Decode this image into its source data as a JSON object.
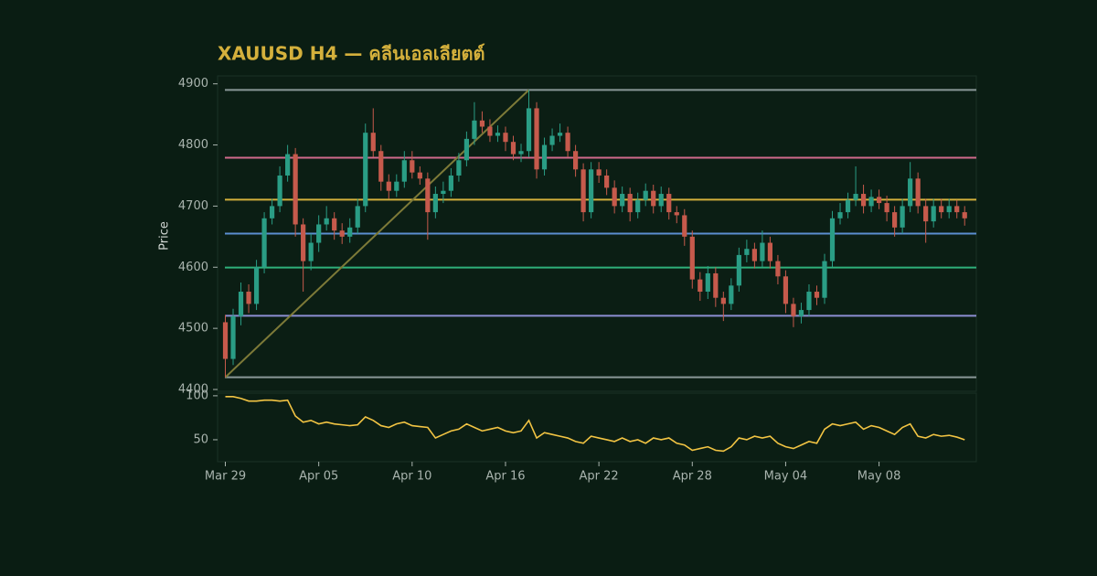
{
  "chart_data": [
    {
      "type": "candlestick",
      "title": "XAUUSD H4 — คลีนเอลเลียตต์",
      "y_label": "Price",
      "xlim": [
        -1,
        96.5
      ],
      "ylim": [
        4397,
        4913
      ],
      "yticks": [
        4400,
        4500,
        4600,
        4700,
        4800,
        4900
      ],
      "up_color": "#2a9d85",
      "down_color": "#c65a4c",
      "open": [
        4510,
        4450,
        4520,
        4560,
        4540,
        4600,
        4680,
        4700,
        4750,
        4785,
        4670,
        4610,
        4640,
        4670,
        4680,
        4660,
        4650,
        4665,
        4700,
        4820,
        4790,
        4740,
        4725,
        4740,
        4775,
        4755,
        4745,
        4690,
        4720,
        4725,
        4750,
        4775,
        4810,
        4840,
        4830,
        4815,
        4820,
        4805,
        4785,
        4790,
        4860,
        4760,
        4800,
        4815,
        4820,
        4790,
        4760,
        4690,
        4760,
        4750,
        4730,
        4700,
        4720,
        4690,
        4710,
        4725,
        4700,
        4720,
        4690,
        4685,
        4650,
        4580,
        4560,
        4590,
        4550,
        4540,
        4570,
        4620,
        4630,
        4610,
        4640,
        4610,
        4585,
        4540,
        4520,
        4530,
        4560,
        4550,
        4610,
        4680,
        4690,
        4710,
        4720,
        4700,
        4715,
        4705,
        4690,
        4665,
        4700,
        4745,
        4700,
        4675,
        4700,
        4690,
        4700,
        4690
      ],
      "high": [
        4522,
        4532,
        4575,
        4572,
        4612,
        4690,
        4712,
        4765,
        4800,
        4795,
        4680,
        4655,
        4685,
        4700,
        4690,
        4672,
        4680,
        4712,
        4835,
        4860,
        4800,
        4752,
        4752,
        4790,
        4790,
        4765,
        4755,
        4732,
        4740,
        4762,
        4787,
        4822,
        4870,
        4855,
        4842,
        4832,
        4830,
        4815,
        4802,
        4890,
        4870,
        4812,
        4827,
        4835,
        4830,
        4800,
        4770,
        4772,
        4772,
        4760,
        4742,
        4732,
        4730,
        4722,
        4737,
        4735,
        4732,
        4730,
        4700,
        4695,
        4660,
        4592,
        4602,
        4600,
        4560,
        4582,
        4632,
        4645,
        4640,
        4660,
        4650,
        4620,
        4595,
        4550,
        4542,
        4572,
        4570,
        4622,
        4692,
        4705,
        4722,
        4765,
        4735,
        4727,
        4727,
        4717,
        4700,
        4712,
        4772,
        4755,
        4712,
        4712,
        4712,
        4712,
        4710,
        4700
      ],
      "low": [
        4420,
        4440,
        4505,
        4525,
        4530,
        4590,
        4670,
        4690,
        4740,
        4650,
        4560,
        4595,
        4625,
        4660,
        4645,
        4638,
        4640,
        4655,
        4690,
        4780,
        4725,
        4712,
        4715,
        4730,
        4745,
        4735,
        4645,
        4680,
        4705,
        4715,
        4740,
        4765,
        4800,
        4820,
        4805,
        4805,
        4790,
        4775,
        4772,
        4780,
        4745,
        4750,
        4790,
        4805,
        4780,
        4748,
        4675,
        4680,
        4738,
        4718,
        4688,
        4690,
        4675,
        4680,
        4700,
        4688,
        4690,
        4678,
        4672,
        4635,
        4565,
        4545,
        4548,
        4535,
        4512,
        4530,
        4560,
        4608,
        4598,
        4600,
        4598,
        4572,
        4525,
        4502,
        4508,
        4520,
        4538,
        4540,
        4600,
        4670,
        4680,
        4700,
        4688,
        4690,
        4695,
        4675,
        4650,
        4655,
        4690,
        4688,
        4640,
        4665,
        4680,
        4680,
        4680,
        4668
      ],
      "close": [
        4450,
        4520,
        4560,
        4540,
        4600,
        4680,
        4700,
        4750,
        4785,
        4670,
        4610,
        4640,
        4670,
        4680,
        4660,
        4650,
        4665,
        4700,
        4820,
        4790,
        4740,
        4725,
        4740,
        4775,
        4755,
        4745,
        4690,
        4720,
        4725,
        4750,
        4775,
        4810,
        4840,
        4830,
        4815,
        4820,
        4805,
        4785,
        4790,
        4860,
        4760,
        4800,
        4815,
        4820,
        4790,
        4760,
        4690,
        4760,
        4750,
        4730,
        4700,
        4720,
        4690,
        4710,
        4725,
        4700,
        4720,
        4690,
        4685,
        4650,
        4580,
        4560,
        4590,
        4550,
        4540,
        4570,
        4620,
        4630,
        4610,
        4640,
        4610,
        4585,
        4540,
        4520,
        4530,
        4560,
        4550,
        4610,
        4680,
        4690,
        4710,
        4720,
        4700,
        4715,
        4705,
        4690,
        4665,
        4700,
        4745,
        4700,
        4675,
        4700,
        4690,
        4700,
        4690,
        4680
      ],
      "levels": [
        {
          "value": 4890,
          "color": "#8a9898"
        },
        {
          "value": 4779.1,
          "color": "#d06a8c"
        },
        {
          "value": 4710.5,
          "color": "#d4b03c"
        },
        {
          "value": 4655,
          "color": "#5b8fd0"
        },
        {
          "value": 4599.5,
          "color": "#2fb07a"
        },
        {
          "value": 4520.6,
          "color": "#8c8ed2"
        },
        {
          "value": 4420,
          "color": "#8a9898"
        }
      ],
      "trendline": {
        "x": [
          0,
          39
        ],
        "y": [
          4420,
          4890
        ],
        "color": "#7d7a38"
      }
    },
    {
      "type": "line",
      "xlim": [
        -1,
        96.5
      ],
      "ylim": [
        25,
        103
      ],
      "yticks": [
        50,
        100
      ],
      "color": "#f2c443",
      "xticks": [
        {
          "value": 0,
          "label": "Mar 29"
        },
        {
          "value": 12,
          "label": "Apr 05"
        },
        {
          "value": 24,
          "label": "Apr 10"
        },
        {
          "value": 36,
          "label": "Apr 16"
        },
        {
          "value": 48,
          "label": "Apr 22"
        },
        {
          "value": 60,
          "label": "Apr 28"
        },
        {
          "value": 72,
          "label": "May 04"
        },
        {
          "value": 84,
          "label": "May 08"
        }
      ],
      "values": [
        99,
        99,
        97,
        94,
        94,
        95,
        95,
        94,
        95,
        77,
        70,
        72,
        68,
        70,
        68,
        67,
        66,
        67,
        76,
        72,
        66,
        64,
        68,
        70,
        66,
        65,
        64,
        52,
        56,
        60,
        62,
        68,
        64,
        60,
        62,
        64,
        60,
        58,
        60,
        72,
        52,
        58,
        56,
        54,
        52,
        48,
        46,
        54,
        52,
        50,
        48,
        52,
        48,
        50,
        46,
        52,
        50,
        52,
        46,
        44,
        38,
        40,
        42,
        38,
        37,
        42,
        52,
        50,
        54,
        52,
        54,
        46,
        42,
        40,
        44,
        48,
        46,
        62,
        68,
        66,
        68,
        70,
        62,
        66,
        64,
        60,
        56,
        64,
        68,
        54,
        52,
        56,
        54,
        55,
        53,
        50
      ]
    }
  ]
}
